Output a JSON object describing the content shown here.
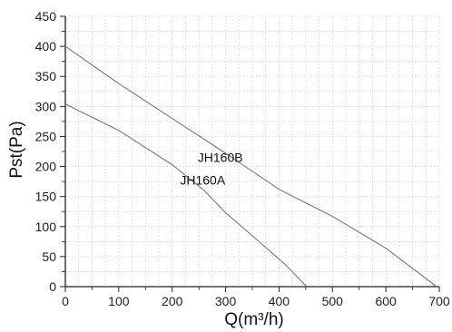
{
  "chart_data": {
    "type": "line",
    "title": "",
    "xlabel": "Q(m³/h)",
    "ylabel": "Pst(Pa)",
    "xlim": [
      0,
      700
    ],
    "ylim": [
      0,
      450
    ],
    "x_ticks": [
      0,
      100,
      200,
      300,
      400,
      500,
      600,
      700
    ],
    "y_ticks": [
      0,
      50,
      100,
      150,
      200,
      250,
      300,
      350,
      400,
      450
    ],
    "x_ticks_text": [
      "0",
      "100",
      "200",
      "300",
      "400",
      "500",
      "600",
      "700"
    ],
    "y_ticks_text": [
      "0",
      "50",
      "100",
      "150",
      "200",
      "250",
      "300",
      "350",
      "400",
      "450"
    ],
    "grid": true,
    "legend": "none",
    "series": [
      {
        "name": "JH160A",
        "x": [
          0,
          100,
          200,
          260,
          300,
          360,
          410,
          452
        ],
        "y": [
          304,
          260,
          203,
          160,
          123,
          77,
          38,
          0
        ],
        "color": "#777777"
      },
      {
        "name": "JH160B",
        "x": [
          0,
          100,
          200,
          300,
          400,
          500,
          600,
          695
        ],
        "y": [
          400,
          338,
          280,
          222,
          162,
          117,
          64,
          0
        ],
        "color": "#777777"
      }
    ]
  }
}
